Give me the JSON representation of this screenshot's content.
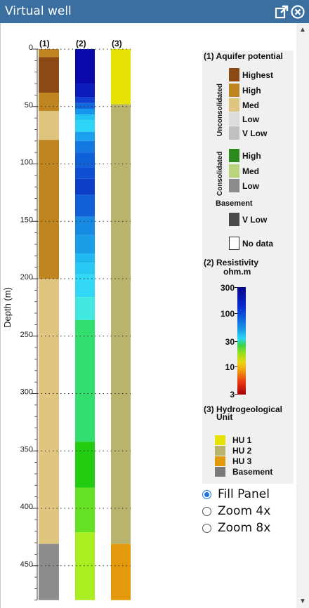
{
  "window": {
    "title": "Virtual well"
  },
  "icons": {
    "popout": "external-link-icon",
    "close": "close-circle-icon"
  },
  "chart_data": {
    "type": "table",
    "ylabel": "Depth (m)",
    "ylim": [
      0,
      480
    ],
    "yticks": [
      "0",
      "50",
      "100",
      "150",
      "200",
      "250",
      "300",
      "350",
      "400",
      "450"
    ],
    "columns": [
      {
        "label": "(1)",
        "layers": [
          {
            "top": 0,
            "bottom": 7,
            "color": "#bf8520"
          },
          {
            "top": 7,
            "bottom": 38,
            "color": "#8b4a14"
          },
          {
            "top": 38,
            "bottom": 54,
            "color": "#bf8520"
          },
          {
            "top": 54,
            "bottom": 79,
            "color": "#dfc580"
          },
          {
            "top": 79,
            "bottom": 200,
            "color": "#bf8520"
          },
          {
            "top": 200,
            "bottom": 431,
            "color": "#dfc580"
          },
          {
            "top": 431,
            "bottom": 480,
            "color": "#8c8c8c"
          }
        ]
      },
      {
        "label": "(2)",
        "layers": [
          {
            "top": 0,
            "bottom": 30,
            "color": "#0a0aaa"
          },
          {
            "top": 30,
            "bottom": 42,
            "color": "#0c1cbc"
          },
          {
            "top": 42,
            "bottom": 47,
            "color": "#0f40d0"
          },
          {
            "top": 47,
            "bottom": 52,
            "color": "#1268de"
          },
          {
            "top": 52,
            "bottom": 57,
            "color": "#1696ec"
          },
          {
            "top": 57,
            "bottom": 62,
            "color": "#22c3f4"
          },
          {
            "top": 62,
            "bottom": 72,
            "color": "#2dd6f7"
          },
          {
            "top": 72,
            "bottom": 80,
            "color": "#1aa0ec"
          },
          {
            "top": 80,
            "bottom": 90,
            "color": "#1478e2"
          },
          {
            "top": 90,
            "bottom": 103,
            "color": "#1060da"
          },
          {
            "top": 103,
            "bottom": 113,
            "color": "#0d4fd2"
          },
          {
            "top": 113,
            "bottom": 127,
            "color": "#0c3ec8"
          },
          {
            "top": 127,
            "bottom": 146,
            "color": "#1260d8"
          },
          {
            "top": 146,
            "bottom": 162,
            "color": "#178ae4"
          },
          {
            "top": 162,
            "bottom": 178,
            "color": "#1a9ee8"
          },
          {
            "top": 178,
            "bottom": 186,
            "color": "#22b8f0"
          },
          {
            "top": 186,
            "bottom": 196,
            "color": "#28c8f4"
          },
          {
            "top": 196,
            "bottom": 216,
            "color": "#32d8f6"
          },
          {
            "top": 216,
            "bottom": 236,
            "color": "#40e8e0"
          },
          {
            "top": 236,
            "bottom": 342,
            "color": "#33dd6e"
          },
          {
            "top": 342,
            "bottom": 382,
            "color": "#22cc11"
          },
          {
            "top": 382,
            "bottom": 421,
            "color": "#66e022"
          },
          {
            "top": 421,
            "bottom": 480,
            "color": "#aaee22"
          }
        ]
      },
      {
        "label": "(3)",
        "layers": [
          {
            "top": 0,
            "bottom": 48,
            "color": "#e5e204"
          },
          {
            "top": 48,
            "bottom": 431,
            "color": "#b8b46e"
          },
          {
            "top": 431,
            "bottom": 480,
            "color": "#e29a0c"
          }
        ]
      }
    ]
  },
  "legend": {
    "aquifer": {
      "title": "(1) Aquifer potential",
      "unconsolidated_label": "Unconsolidated",
      "unconsolidated": [
        {
          "label": "Highest",
          "color": "#8b4a14"
        },
        {
          "label": "High",
          "color": "#bf8520"
        },
        {
          "label": "Med",
          "color": "#dfc580"
        },
        {
          "label": "Low",
          "color": "#dcdcdc"
        },
        {
          "label": "V Low",
          "color": "#c0c0c0"
        }
      ],
      "consolidated_label": "Consolidated",
      "consolidated": [
        {
          "label": "High",
          "color": "#2d8a1c"
        },
        {
          "label": "Med",
          "color": "#b8d47c"
        },
        {
          "label": "Low",
          "color": "#8c8c8c"
        }
      ],
      "basement_label": "Basement",
      "basement": [
        {
          "label": "V Low",
          "color": "#4a4a4a"
        }
      ],
      "no_data_label": "No data",
      "no_data_color": "#ffffff"
    },
    "resistivity": {
      "title": "(2) Resistivity",
      "unit": "ohm.m",
      "ticks": [
        "300",
        "100",
        "30",
        "10",
        "3"
      ]
    },
    "hydro": {
      "title": "(3) Hydrogeological",
      "title_line2": "Unit",
      "items": [
        {
          "label": "HU 1",
          "color": "#e5e204"
        },
        {
          "label": "HU 2",
          "color": "#b8b46e"
        },
        {
          "label": "HU 3",
          "color": "#e29a0c"
        },
        {
          "label": "Basement",
          "color": "#7a7a7a"
        }
      ]
    }
  },
  "view_options": {
    "options": [
      {
        "label": "Fill Panel",
        "selected": true
      },
      {
        "label": "Zoom 4x",
        "selected": false
      },
      {
        "label": "Zoom 8x",
        "selected": false
      }
    ]
  }
}
